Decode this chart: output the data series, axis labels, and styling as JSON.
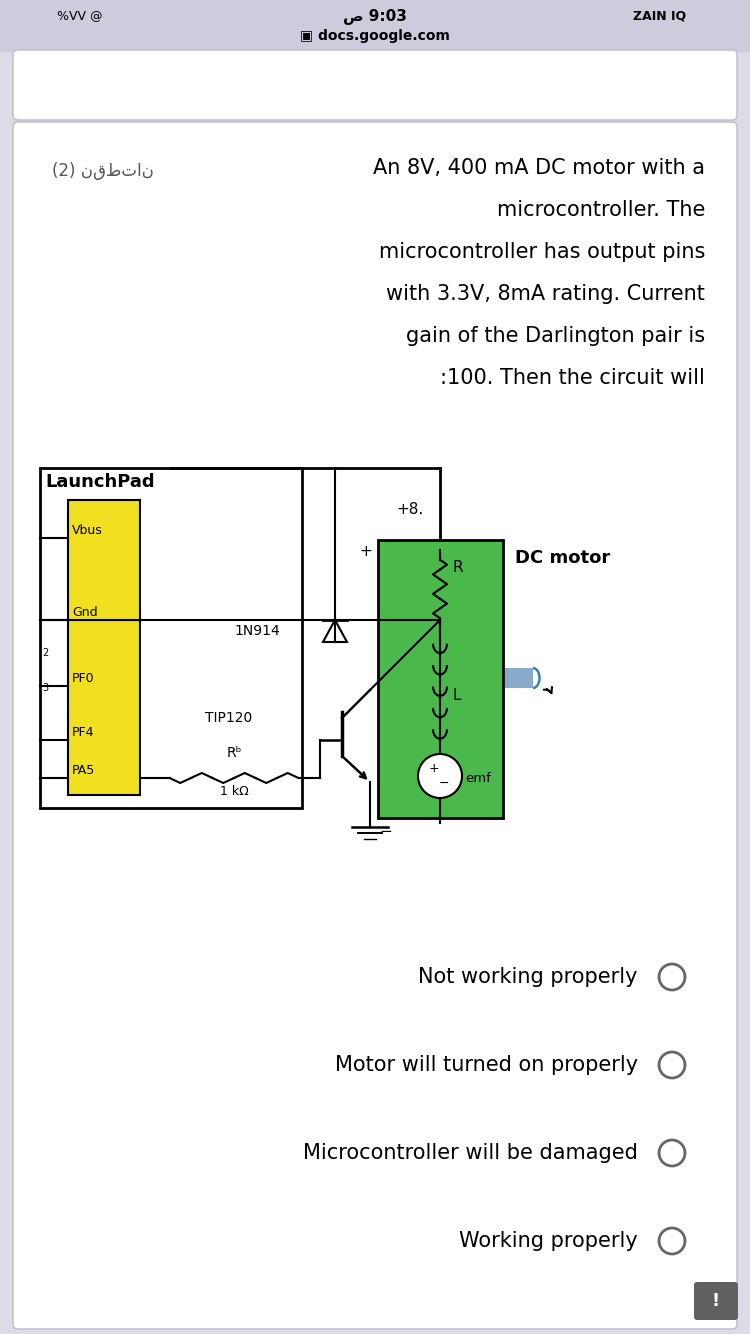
{
  "bg_color": "#dcdce8",
  "card_bg": "#ffffff",
  "status_bg": "#ccccdc",
  "status_time": "ص 9:03",
  "status_right": "ZAIN IQ",
  "url": "docs.google.com",
  "q_prefix": "(2) نقطتان",
  "q_lines": [
    "An 8V, 400 mA DC motor with a",
    "microcontroller. The",
    "microcontroller has output pins",
    "with 3.3V, 8mA rating. Current",
    "gain of the Darlington pair is",
    ":100. Then the circuit will"
  ],
  "options": [
    "Not working properly",
    "Motor will turned on properly",
    "Microcontroller will be damaged",
    "Working properly"
  ],
  "yellow": "#f0e020",
  "green": "#4ab84a",
  "motor_blue": "#88aacc",
  "gray_circle": "#666666",
  "black": "#000000",
  "white": "#ffffff",
  "resistor_label": "Rᵇ",
  "resistor_val": "1 kΩ",
  "minus_sign": "−"
}
